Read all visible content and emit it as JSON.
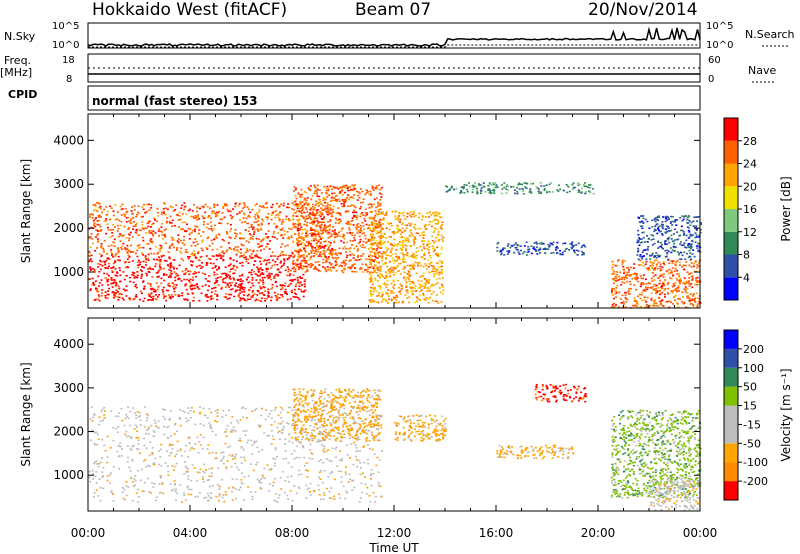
{
  "header": {
    "title": "Hokkaido West (fitACF)",
    "beam": "Beam 07",
    "date": "20/Nov/2014"
  },
  "strip_labels": {
    "nsky": "N.Sky",
    "nsearch": "N.Search",
    "freq_line1": "Freq.",
    "freq_line2": "[MHz]",
    "nave": "Nave",
    "cpid": "CPID",
    "noise_ticks": [
      "10^5",
      "10^0"
    ],
    "freq_ticks": [
      "18",
      "8"
    ],
    "nave_ticks": [
      "60",
      "0"
    ],
    "cpid_text": "normal (fast stereo) 153"
  },
  "colors": {
    "power_scale": [
      "#0000ff",
      "#2f4fa8",
      "#2e8b57",
      "#7fc97f",
      "#f0e000",
      "#ffa500",
      "#ff6000",
      "#ff0000"
    ],
    "velocity_scale": [
      "#ff0000",
      "#ff8c00",
      "#ffa500",
      "#bdbdbd",
      "#bdbdbd",
      "#80c000",
      "#2e8b57",
      "#2f4fa8",
      "#0000ff"
    ]
  },
  "chart_data": [
    {
      "type": "heatmap",
      "name": "power",
      "xlabel": "",
      "ylabel": "Slant Range [km]",
      "x_ticks": [
        "00:00",
        "04:00",
        "08:00",
        "12:00",
        "16:00",
        "20:00",
        "00:00"
      ],
      "y_ticks": [
        1000,
        2000,
        3000,
        4000
      ],
      "ylim": [
        180,
        4600
      ],
      "colorbar": {
        "label": "Power [dB]",
        "ticks": [
          4,
          8,
          12,
          16,
          20,
          24,
          28
        ],
        "range": [
          0,
          32
        ]
      },
      "regions": [
        {
          "t": [
            0,
            8.5
          ],
          "r": [
            350,
            1400
          ],
          "level": 7
        },
        {
          "t": [
            0,
            9.5
          ],
          "r": [
            1400,
            2600
          ],
          "level": 6
        },
        {
          "t": [
            8,
            11.5
          ],
          "r": [
            1000,
            3000
          ],
          "level": 6
        },
        {
          "t": [
            11,
            13.9
          ],
          "r": [
            300,
            2400
          ],
          "level": 5
        },
        {
          "t": [
            14,
            19.8
          ],
          "r": [
            2800,
            3050
          ],
          "level": 2
        },
        {
          "t": [
            16,
            19.5
          ],
          "r": [
            1400,
            1700
          ],
          "level": 1
        },
        {
          "t": [
            20.5,
            24
          ],
          "r": [
            200,
            1300
          ],
          "level": 6
        },
        {
          "t": [
            21.5,
            24
          ],
          "r": [
            1300,
            2300
          ],
          "level": 1
        }
      ]
    },
    {
      "type": "heatmap",
      "name": "velocity",
      "xlabel": "Time UT",
      "ylabel": "Slant Range [km]",
      "x_ticks": [
        "00:00",
        "04:00",
        "08:00",
        "12:00",
        "16:00",
        "20:00",
        "00:00"
      ],
      "y_ticks": [
        1000,
        2000,
        3000,
        4000
      ],
      "ylim": [
        180,
        4600
      ],
      "colorbar": {
        "label": "Velocity [m s⁻¹]",
        "ticks": [
          -200,
          -100,
          -50,
          -15,
          15,
          50,
          100,
          200
        ],
        "range": [
          -250,
          250
        ]
      },
      "regions": [
        {
          "t": [
            0,
            11.5
          ],
          "r": [
            400,
            2600
          ],
          "level": 3
        },
        {
          "t": [
            8,
            11.5
          ],
          "r": [
            1800,
            3000
          ],
          "level": 2
        },
        {
          "t": [
            12,
            14
          ],
          "r": [
            1800,
            2400
          ],
          "level": 2
        },
        {
          "t": [
            16,
            19
          ],
          "r": [
            1400,
            1700
          ],
          "level": 2
        },
        {
          "t": [
            17.5,
            19.5
          ],
          "r": [
            2700,
            3100
          ],
          "level": 0
        },
        {
          "t": [
            20.5,
            24
          ],
          "r": [
            500,
            2500
          ],
          "level": 5
        },
        {
          "t": [
            22,
            24
          ],
          "r": [
            200,
            900
          ],
          "level": 3
        }
      ]
    }
  ]
}
